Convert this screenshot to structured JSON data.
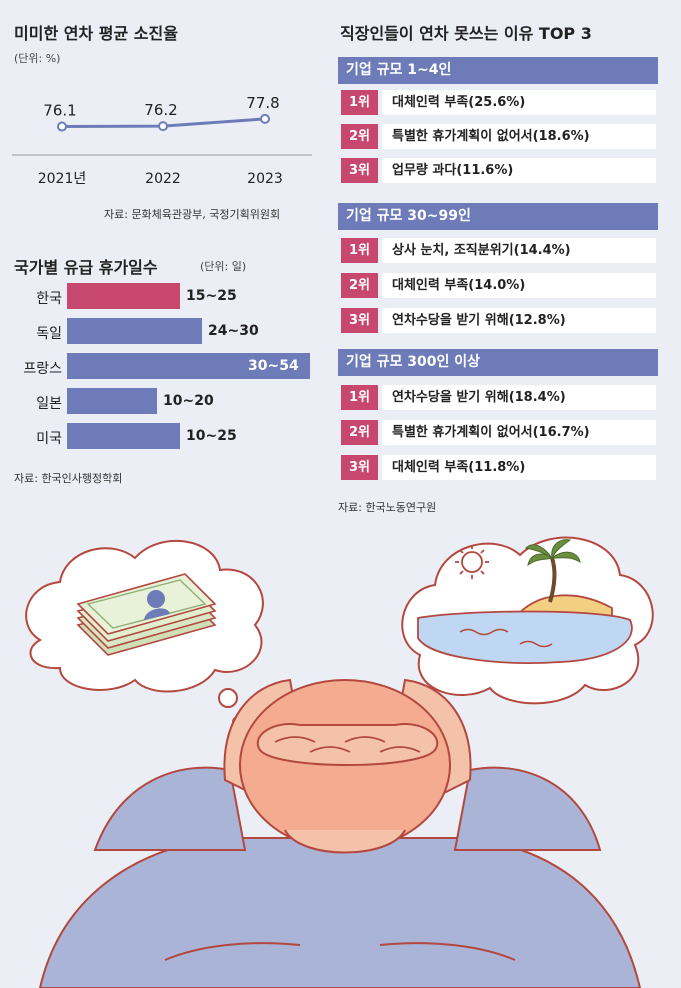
{
  "colors": {
    "background": "#eceef5",
    "line": "#6d7cb8",
    "korea_bar": "#c8476e",
    "other_bar": "#6d7cb8",
    "rank_header": "#6d7cb8",
    "rank_badge": "#c8476e"
  },
  "line_chart": {
    "title": "미미한 연차 평균 소진율",
    "unit": "(단위: %)",
    "source": "자료: 문화체육관광부, 국정기획위원회"
  },
  "bar_chart": {
    "title": "국가별 유급 휴가일수",
    "unit": "(단위: 일)",
    "source": "자료: 한국인사행정학회"
  },
  "ranking": {
    "title": "직장인들이 연차 못쓰는 이유 TOP 3",
    "source": "자료: 한국노동연구원",
    "groups": [
      {
        "header": "기업 규모 1~4인",
        "items": [
          {
            "rank": "1위",
            "text": "대체인력 부족(25.6%)"
          },
          {
            "rank": "2위",
            "text": "특별한 휴가계획이 없어서(18.6%)"
          },
          {
            "rank": "3위",
            "text": "업무량 과다(11.6%)"
          }
        ]
      },
      {
        "header": "기업 규모 30~99인",
        "items": [
          {
            "rank": "1위",
            "text": "상사 눈치, 조직분위기(14.4%)"
          },
          {
            "rank": "2위",
            "text": "대체인력 부족(14.0%)"
          },
          {
            "rank": "3위",
            "text": "연차수당을 받기 위해(12.8%)"
          }
        ]
      },
      {
        "header": "기업 규모 300인 이상",
        "items": [
          {
            "rank": "1위",
            "text": "연차수당을 받기 위해(18.4%)"
          },
          {
            "rank": "2위",
            "text": "특별한 휴가계획이 없어서(16.7%)"
          },
          {
            "rank": "3위",
            "text": "대체인력 부족(11.8%)"
          }
        ]
      }
    ]
  },
  "chart_data": [
    {
      "type": "line",
      "title": "미미한 연차 평균 소진율",
      "unit": "%",
      "categories": [
        "2021년",
        "2022",
        "2023"
      ],
      "values": [
        76.1,
        76.2,
        77.8
      ],
      "value_labels": [
        "76.1",
        "76.2",
        "77.8"
      ]
    },
    {
      "type": "bar",
      "orientation": "horizontal",
      "title": "국가별 유급 휴가일수",
      "unit": "일",
      "categories": [
        "한국",
        "독일",
        "프랑스",
        "일본",
        "미국"
      ],
      "ranges": [
        [
          15,
          25
        ],
        [
          24,
          30
        ],
        [
          30,
          54
        ],
        [
          10,
          20
        ],
        [
          10,
          25
        ]
      ],
      "value_labels": [
        "15~25",
        "24~30",
        "30~54",
        "10~20",
        "10~25"
      ],
      "label_inside": [
        false,
        false,
        true,
        false,
        false
      ],
      "highlight": "한국"
    }
  ]
}
